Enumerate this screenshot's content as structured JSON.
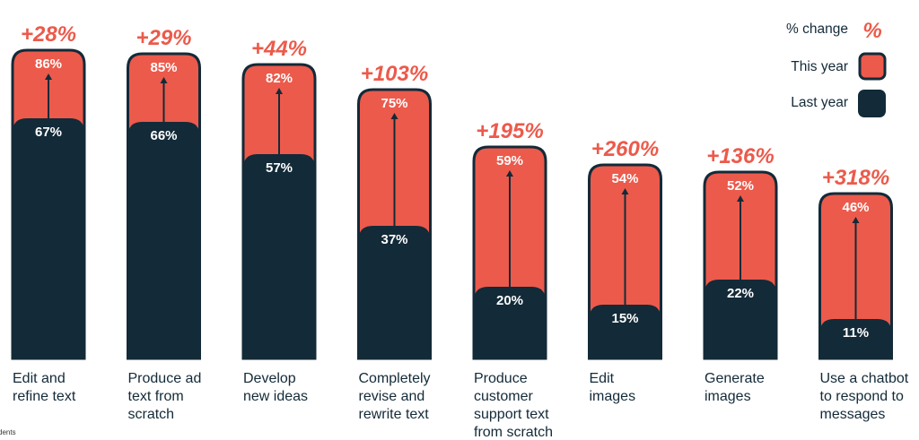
{
  "chart_data": {
    "type": "bar",
    "categories": [
      [
        "Edit and",
        "refine text"
      ],
      [
        "Produce ad",
        "text from",
        "scratch"
      ],
      [
        "Develop",
        "new ideas"
      ],
      [
        "Completely",
        "revise and",
        "rewrite text"
      ],
      [
        "Produce",
        "customer",
        "support text",
        "from scratch"
      ],
      [
        "Edit",
        "images"
      ],
      [
        "Generate",
        "images"
      ],
      [
        "Use a chatbot",
        "to respond to",
        "messages"
      ]
    ],
    "series": [
      {
        "name": "Last year",
        "values": [
          67,
          66,
          57,
          37,
          20,
          15,
          22,
          11
        ],
        "labels": [
          "67%",
          "66%",
          "57%",
          "37%",
          "20%",
          "15%",
          "22%",
          "11%"
        ]
      },
      {
        "name": "This year",
        "values": [
          86,
          85,
          82,
          75,
          59,
          54,
          52,
          46
        ],
        "labels": [
          "86%",
          "85%",
          "82%",
          "75%",
          "59%",
          "54%",
          "52%",
          "46%"
        ]
      }
    ],
    "pct_change": [
      "+28%",
      "+29%",
      "+44%",
      "+103%",
      "+195%",
      "+260%",
      "+136%",
      "+318%"
    ],
    "legend": {
      "change_label": "% change",
      "change_symbol": "%",
      "this_year": "This year",
      "last_year": "Last year",
      "position": "top-right"
    },
    "ylim": [
      0,
      100
    ],
    "colors": {
      "this_year": "#ec5a4b",
      "last_year": "#132a38",
      "text": "#132a38"
    }
  },
  "footnote": "dents"
}
